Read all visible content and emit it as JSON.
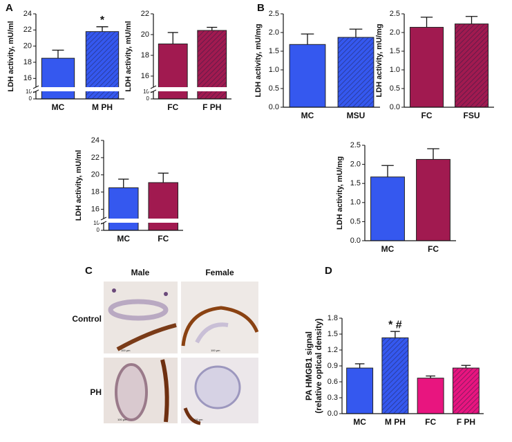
{
  "panels": [
    "A",
    "B",
    "C",
    "D"
  ],
  "chart_data": [
    {
      "type": "bar",
      "ylabel": "LDH activity, mU/ml",
      "categories": [
        "MC",
        "M PH"
      ],
      "values": [
        18.5,
        21.8
      ],
      "errors": [
        1.0,
        0.6
      ],
      "colors": [
        "#3558ef",
        "#3558ef"
      ],
      "hatched": [
        false,
        true
      ],
      "ylim": [
        0,
        24
      ],
      "ybreak": [
        10,
        15
      ],
      "yticks": [
        0,
        10,
        16,
        18,
        20,
        22,
        24
      ],
      "annotations": [
        {
          "text": "*",
          "index": 1
        }
      ]
    },
    {
      "type": "bar",
      "ylabel": "LDH activity, mU/ml",
      "categories": [
        "FC",
        "F PH"
      ],
      "values": [
        19.1,
        20.4
      ],
      "errors": [
        1.1,
        0.3
      ],
      "colors": [
        "#a11a50",
        "#a11a50"
      ],
      "hatched": [
        false,
        true
      ],
      "ylim": [
        0,
        22
      ],
      "ybreak": [
        10,
        15
      ],
      "yticks": [
        0,
        10,
        16,
        18,
        20,
        22
      ]
    },
    {
      "type": "bar",
      "ylabel": "LDH activity, mU/ml",
      "categories": [
        "MC",
        "FC"
      ],
      "values": [
        18.5,
        19.1
      ],
      "errors": [
        1.0,
        1.1
      ],
      "colors": [
        "#3558ef",
        "#a11a50"
      ],
      "hatched": [
        false,
        false
      ],
      "ylim": [
        0,
        24
      ],
      "ybreak": [
        10,
        15
      ],
      "yticks": [
        0,
        10,
        16,
        18,
        20,
        22,
        24
      ]
    },
    {
      "type": "bar",
      "ylabel": "LDH activity, mU/mg",
      "categories": [
        "MC",
        "MSU"
      ],
      "values": [
        1.68,
        1.87
      ],
      "errors": [
        0.28,
        0.22
      ],
      "colors": [
        "#3558ef",
        "#3558ef"
      ],
      "hatched": [
        false,
        true
      ],
      "ylim": [
        0,
        2.5
      ],
      "yticks": [
        {
          "value": 0,
          "label": "0.0"
        },
        0.5,
        {
          "value": 1,
          "label": "1.0"
        },
        1.5,
        {
          "value": 2,
          "label": "2.0"
        },
        2.5
      ]
    },
    {
      "type": "bar",
      "ylabel": "LDH activity, mU/mg",
      "categories": [
        "FC",
        "FSU"
      ],
      "values": [
        2.14,
        2.23
      ],
      "errors": [
        0.27,
        0.2
      ],
      "colors": [
        "#a11a50",
        "#a11a50"
      ],
      "hatched": [
        false,
        true
      ],
      "ylim": [
        0,
        2.5
      ],
      "yticks": [
        {
          "value": 0,
          "label": "0.0"
        },
        0.5,
        {
          "value": 1,
          "label": "1.0"
        },
        1.5,
        {
          "value": 2,
          "label": "2.0"
        },
        2.5
      ]
    },
    {
      "type": "bar",
      "ylabel": "LDH activity, mU/mg",
      "categories": [
        "MC",
        "FC"
      ],
      "values": [
        1.67,
        2.13
      ],
      "errors": [
        0.3,
        0.28
      ],
      "colors": [
        "#3558ef",
        "#a11a50"
      ],
      "hatched": [
        false,
        false
      ],
      "ylim": [
        0,
        2.5
      ],
      "yticks": [
        {
          "value": 0,
          "label": "0.0"
        },
        0.5,
        {
          "value": 1,
          "label": "1.0"
        },
        1.5,
        {
          "value": 2,
          "label": "2.0"
        },
        2.5
      ]
    },
    {
      "type": "bar",
      "ylabel": [
        "PA HMGB1 signal",
        "(relative optical density)"
      ],
      "categories": [
        "MC",
        "M PH",
        "FC",
        "F PH"
      ],
      "values": [
        0.86,
        1.43,
        0.67,
        0.86
      ],
      "errors": [
        0.08,
        0.12,
        0.04,
        0.05
      ],
      "colors": [
        "#3558ef",
        "#3558ef",
        "#e8157f",
        "#e8157f"
      ],
      "hatched": [
        false,
        true,
        false,
        true
      ],
      "ylim": [
        0,
        1.8
      ],
      "yticks": [
        {
          "value": 0,
          "label": "0.0"
        },
        0.3,
        0.6,
        0.9,
        1.2,
        1.5,
        1.8
      ],
      "annotations": [
        {
          "text": "* #",
          "index": 1
        }
      ]
    }
  ],
  "images": {
    "columns": [
      "Male",
      "Female"
    ],
    "rows": [
      "Control",
      "PH"
    ],
    "scale_bar": "100 μm"
  }
}
